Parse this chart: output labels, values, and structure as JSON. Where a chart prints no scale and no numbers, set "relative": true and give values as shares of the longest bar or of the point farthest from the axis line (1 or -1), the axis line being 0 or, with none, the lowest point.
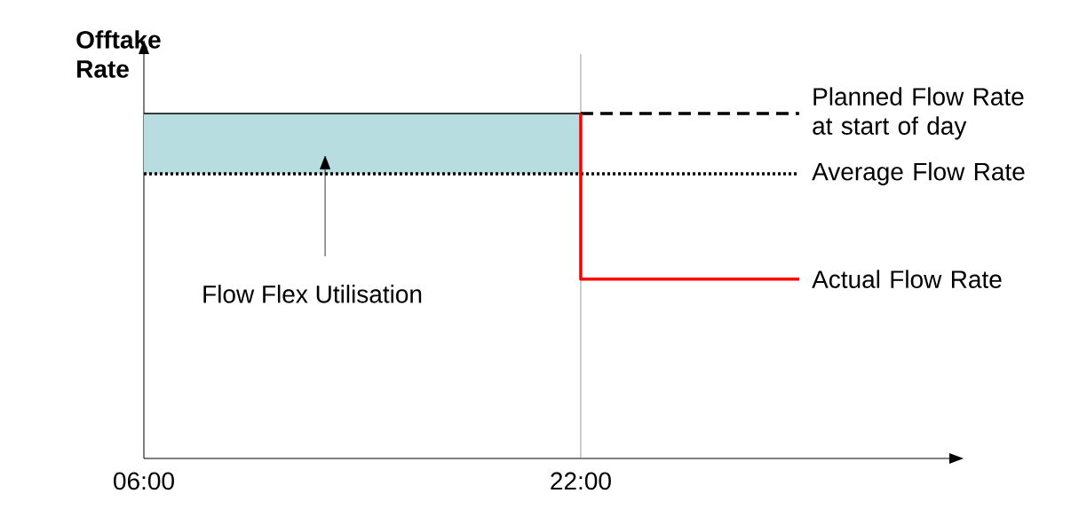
{
  "chart_data": {
    "type": "line",
    "relative": true,
    "ylabel": "Offtake Rate",
    "xlim": [
      6,
      35.5
    ],
    "xticks": [
      {
        "value": 6,
        "label": "06:00"
      },
      {
        "value": 22,
        "label": "22:00"
      }
    ],
    "tick_labels": "x",
    "marker": "none",
    "series": [
      {
        "x": [
          6,
          22
        ],
        "values": [
          1,
          1
        ],
        "lower": [
          0.825,
          0.825
        ],
        "upper": [
          1,
          1
        ],
        "color": "#000000",
        "line_style": "solid"
      },
      {
        "name": "Planned Flow Rate at start of day",
        "x": [
          22,
          30
        ],
        "values": [
          1,
          1
        ],
        "color": "#000000",
        "line_style": "dashed"
      },
      {
        "name": "Average Flow Rate",
        "x": [
          6,
          30
        ],
        "values": [
          0.825,
          0.825
        ],
        "color": "#000000",
        "line_style": "dotted"
      },
      {
        "name": "Actual Flow Rate",
        "x": [
          22,
          22,
          30
        ],
        "values": [
          1,
          0.52,
          0.52
        ],
        "color": "#ff0000",
        "line_style": "solid"
      }
    ],
    "ref_lines": [
      {
        "axis": "x",
        "value": 22,
        "color": "#808080"
      }
    ],
    "annotations": [
      "Flow Flex Utilisation"
    ]
  }
}
